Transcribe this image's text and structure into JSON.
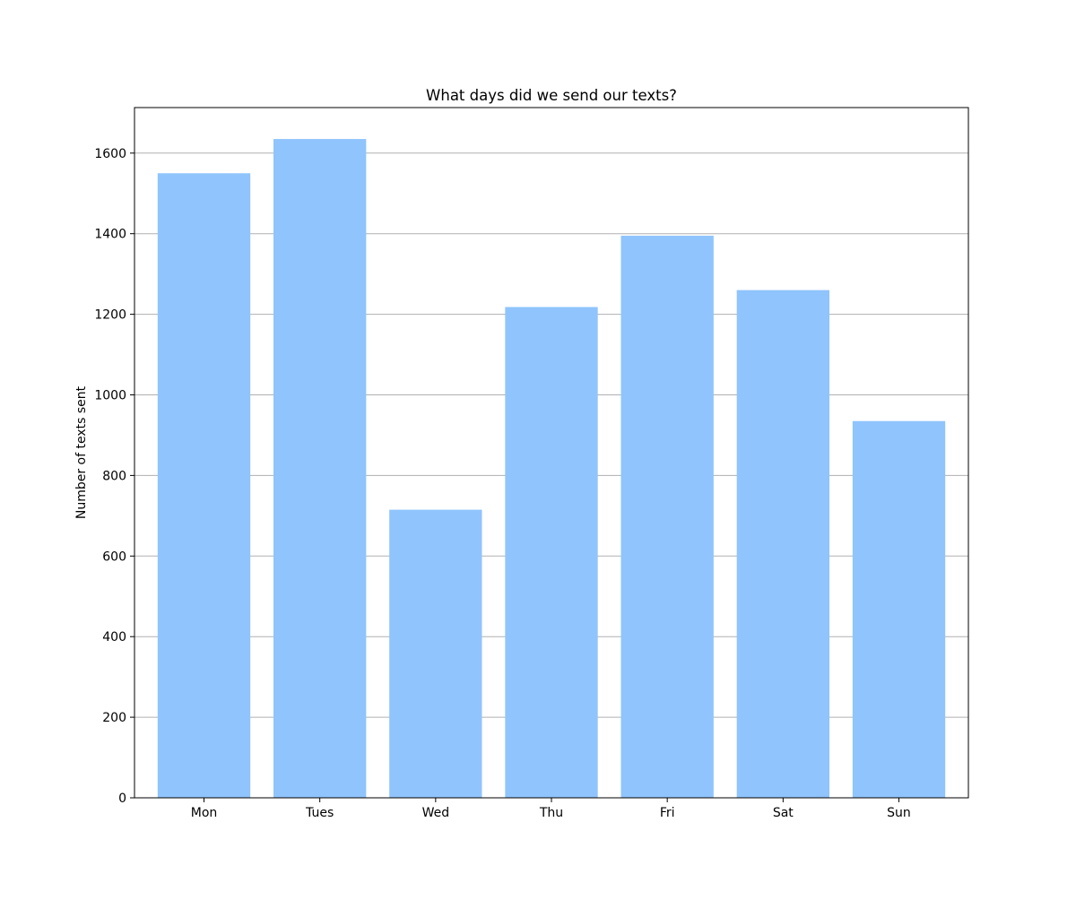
{
  "colors": {
    "bar": "#90c4fc",
    "grid": "#b0b0b0",
    "axis": "#000000",
    "background": "#ffffff"
  },
  "chart_data": {
    "type": "bar",
    "title": "What days did we send our texts?",
    "xlabel": "",
    "ylabel": "Number of texts sent",
    "categories": [
      "Mon",
      "Tues",
      "Wed",
      "Thu",
      "Fri",
      "Sat",
      "Sun"
    ],
    "values": [
      1550,
      1635,
      715,
      1218,
      1395,
      1260,
      935
    ],
    "ylim": [
      0,
      1713
    ],
    "yticks": [
      0,
      200,
      400,
      600,
      800,
      1000,
      1200,
      1400,
      1600
    ],
    "grid": "horizontal",
    "legend": "none"
  }
}
